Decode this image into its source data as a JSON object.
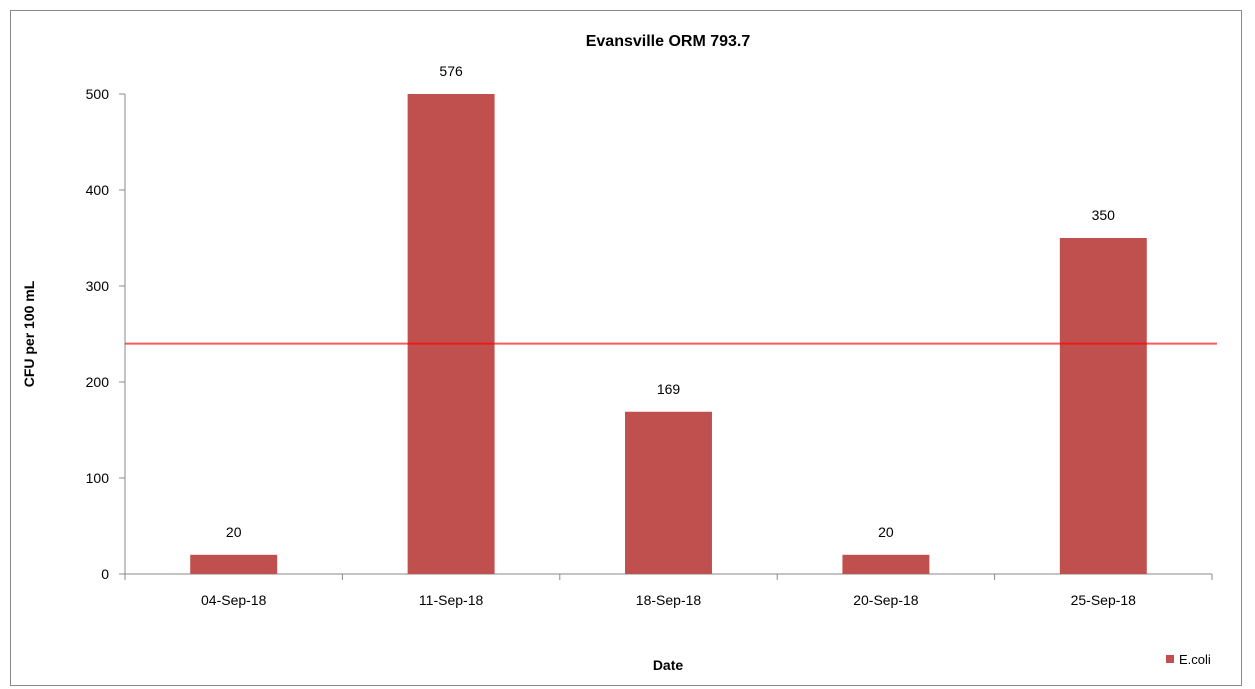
{
  "chart_data": {
    "type": "bar",
    "title": "Evansville ORM 793.7",
    "xlabel": "Date",
    "ylabel": "CFU per 100 mL",
    "categories": [
      "04-Sep-18",
      "11-Sep-18",
      "18-Sep-18",
      "20-Sep-18",
      "25-Sep-18"
    ],
    "series": [
      {
        "name": "E.coli",
        "values": [
          20,
          576,
          169,
          20,
          350
        ],
        "data_labels": [
          "20",
          "576",
          "169",
          "20",
          "350"
        ],
        "color": "#C0504D"
      }
    ],
    "ylim": [
      0,
      500
    ],
    "yticks": [
      "0",
      "100",
      "200",
      "300",
      "400",
      "500"
    ],
    "reference_line": {
      "value": 240,
      "color": "#FF0000"
    },
    "grid": false,
    "legend_position": "bottom-right"
  }
}
